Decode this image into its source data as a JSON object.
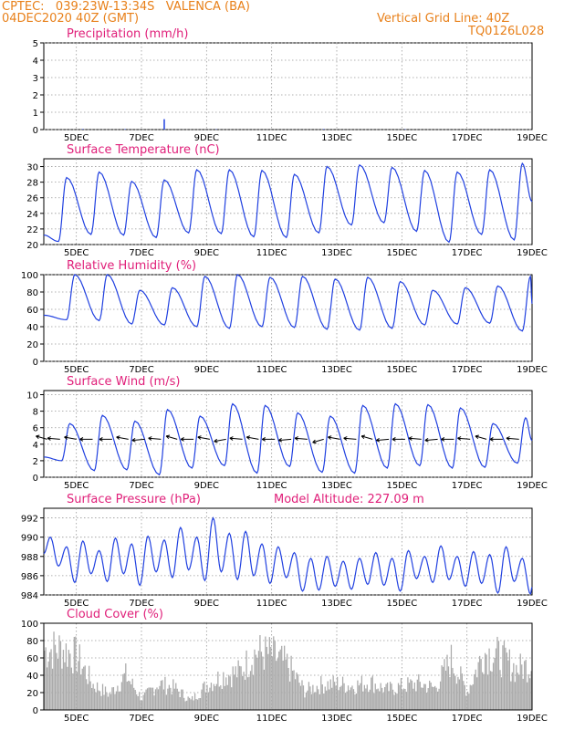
{
  "header": {
    "line1_left": "CPTEC:   039:23W-13:34S   VALENCA (BA)",
    "line2_left": "04DEC2020 40Z (GMT)",
    "line1_right": "Vertical Grid Line: 40Z",
    "line2_right": "TQ0126L028"
  },
  "chart_data": [
    {
      "type": "bar",
      "title": "Precipitation (mm/h)",
      "ylim": [
        0,
        5
      ],
      "yticks": [
        "0",
        "1",
        "2",
        "3",
        "4",
        "5"
      ],
      "x_ticks": [
        "5DEC",
        "7DEC",
        "9DEC",
        "11DEC",
        "13DEC",
        "15DEC",
        "17DEC",
        "19DEC"
      ],
      "series": [
        {
          "x": [
            7.7,
            5.2,
            6.5,
            9.3,
            12.6,
            15.1
          ],
          "values": [
            0.6,
            0.03,
            0.03,
            0.02,
            0.03,
            0.02
          ]
        }
      ]
    },
    {
      "type": "line",
      "title": "Surface Temperature (nC)",
      "ylim": [
        20,
        31
      ],
      "yticks": [
        "20",
        "22",
        "24",
        "26",
        "28",
        "30"
      ],
      "x_ticks": [
        "5DEC",
        "7DEC",
        "9DEC",
        "11DEC",
        "13DEC",
        "15DEC",
        "17DEC",
        "19DEC"
      ],
      "daily_extremes": {
        "days": [
          4.7,
          5.7,
          6.7,
          7.7,
          8.7,
          9.7,
          10.7,
          11.7,
          12.7,
          13.7,
          14.7,
          15.7,
          16.7,
          17.7,
          18.7
        ],
        "max": [
          28.6,
          29.3,
          28.1,
          28.3,
          29.6,
          29.6,
          29.5,
          29.0,
          30.0,
          30.2,
          29.9,
          29.5,
          29.3,
          29.6,
          30.4
        ],
        "min": [
          20.4,
          21.3,
          21.2,
          20.9,
          21.5,
          21.4,
          21.0,
          20.9,
          21.5,
          22.5,
          22.8,
          21.7,
          20.3,
          21.3,
          20.6
        ]
      }
    },
    {
      "type": "line",
      "title": "Relative Humidity (%)",
      "ylim": [
        0,
        100
      ],
      "yticks": [
        "0",
        "20",
        "40",
        "60",
        "80",
        "100"
      ],
      "x_ticks": [
        "5DEC",
        "7DEC",
        "9DEC",
        "11DEC",
        "13DEC",
        "15DEC",
        "17DEC",
        "19DEC"
      ],
      "daily_extremes": {
        "days": [
          4.7,
          5.7,
          6.7,
          7.7,
          8.7,
          9.7,
          10.7,
          11.7,
          12.7,
          13.7,
          14.7,
          15.7,
          16.7,
          17.7,
          18.7
        ],
        "max": [
          100,
          100,
          82,
          85,
          98,
          100,
          97,
          98,
          95,
          97,
          92,
          82,
          85,
          87,
          98
        ],
        "min": [
          48,
          47,
          43,
          42,
          40,
          38,
          40,
          39,
          37,
          36,
          38,
          42,
          43,
          44,
          35
        ]
      }
    },
    {
      "type": "line",
      "title": "Surface Wind (m/s)",
      "ylim": [
        0,
        10.5
      ],
      "yticks": [
        "0",
        "2",
        "4",
        "6",
        "8",
        "10"
      ],
      "x_ticks": [
        "5DEC",
        "7DEC",
        "9DEC",
        "11DEC",
        "13DEC",
        "15DEC",
        "17DEC",
        "19DEC"
      ],
      "daily_extremes": {
        "days": [
          4.7,
          5.7,
          6.7,
          7.7,
          8.7,
          9.7,
          10.7,
          11.7,
          12.7,
          13.7,
          14.7,
          15.7,
          16.7,
          17.7,
          18.7
        ],
        "max": [
          6.5,
          7.5,
          6.8,
          8.2,
          7.4,
          8.9,
          8.7,
          7.8,
          7.4,
          8.7,
          8.9,
          8.8,
          8.4,
          6.5,
          7.2
        ],
        "min": [
          2.0,
          0.8,
          0.9,
          0.3,
          1.1,
          1.4,
          0.5,
          1.3,
          0.6,
          0.5,
          1.1,
          1.4,
          1.1,
          1.2,
          1.7
        ]
      },
      "wind_arrows": {
        "x": [
          4.1,
          4.5,
          5.0,
          5.5,
          6.1,
          6.6,
          7.1,
          7.6,
          8.1,
          8.6,
          9.1,
          9.6,
          10.1,
          10.6,
          11.1,
          11.6,
          12.1,
          12.6,
          13.1,
          13.6,
          14.1,
          14.6,
          15.1,
          15.6,
          16.1,
          16.6,
          17.1,
          17.6,
          18.1,
          18.6
        ],
        "direction_deg": [
          60,
          80,
          70,
          90,
          90,
          70,
          100,
          80,
          60,
          90,
          70,
          110,
          80,
          70,
          90,
          100,
          80,
          120,
          70,
          80,
          60,
          100,
          90,
          80,
          100,
          90,
          80,
          60,
          90,
          80
        ]
      }
    },
    {
      "type": "line",
      "title": "Surface Pressure (hPa)",
      "annotation": "Model Altitude: 227.09 m",
      "ylim": [
        984,
        993
      ],
      "yticks": [
        "984",
        "986",
        "988",
        "990",
        "992"
      ],
      "x_ticks": [
        "5DEC",
        "7DEC",
        "9DEC",
        "11DEC",
        "13DEC",
        "15DEC",
        "17DEC",
        "19DEC"
      ],
      "semidiurnal": {
        "days": [
          4.2,
          4.7,
          5.2,
          5.7,
          6.2,
          6.7,
          7.2,
          7.7,
          8.2,
          8.7,
          9.2,
          9.7,
          10.2,
          10.7,
          11.2,
          11.7,
          12.2,
          12.7,
          13.2,
          13.7,
          14.2,
          14.7,
          15.2,
          15.7,
          16.2,
          16.7,
          17.2,
          17.7,
          18.2,
          18.7
        ],
        "max": [
          990.0,
          989.0,
          989.6,
          988.6,
          989.9,
          989.3,
          990.1,
          989.7,
          991.0,
          990.0,
          992.0,
          990.4,
          990.6,
          989.3,
          989.0,
          988.4,
          987.8,
          988.0,
          987.5,
          987.8,
          988.4,
          987.8,
          988.6,
          988.0,
          989.1,
          988.0,
          988.5,
          988.2,
          989.0,
          987.8
        ],
        "min": [
          987.0,
          985.3,
          986.2,
          985.4,
          986.2,
          985.0,
          986.4,
          985.8,
          986.6,
          985.5,
          986.4,
          985.6,
          986.0,
          985.2,
          985.8,
          984.4,
          984.5,
          984.9,
          984.6,
          985.1,
          985.0,
          984.4,
          985.7,
          985.3,
          985.6,
          984.9,
          985.2,
          984.2,
          985.4,
          984.1
        ]
      }
    },
    {
      "type": "bar",
      "title": "Cloud Cover (%)",
      "ylim": [
        0,
        100
      ],
      "yticks": [
        "0",
        "20",
        "40",
        "60",
        "80",
        "100"
      ],
      "x_ticks": [
        "5DEC",
        "7DEC",
        "9DEC",
        "11DEC",
        "13DEC",
        "15DEC",
        "17DEC",
        "19DEC"
      ],
      "envelope": {
        "x": [
          4.0,
          4.5,
          5.0,
          5.5,
          6.0,
          6.5,
          7.0,
          7.5,
          8.0,
          8.5,
          9.0,
          9.5,
          10.0,
          10.5,
          11.0,
          11.5,
          12.0,
          12.5,
          13.0,
          13.5,
          14.0,
          14.5,
          15.0,
          15.5,
          16.0,
          16.5,
          17.0,
          17.5,
          18.0,
          18.5,
          19.0
        ],
        "values": [
          95,
          98,
          85,
          40,
          25,
          55,
          18,
          42,
          35,
          15,
          40,
          55,
          60,
          92,
          88,
          70,
          30,
          40,
          42,
          38,
          45,
          32,
          38,
          42,
          35,
          80,
          30,
          92,
          85,
          65,
          72
        ]
      }
    }
  ]
}
